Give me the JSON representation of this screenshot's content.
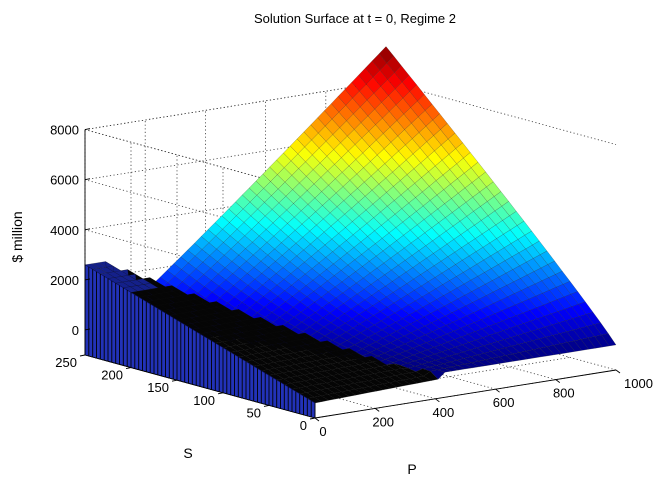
{
  "chart_data": {
    "type": "surface",
    "title": "Solution Surface at t = 0, Regime 2",
    "xlabel": "P",
    "ylabel": "S",
    "zlabel": "$ million",
    "xlim": [
      0,
      1000
    ],
    "ylim": [
      0,
      250
    ],
    "zlim": [
      -1000,
      8000
    ],
    "x_ticks": [
      "0",
      "200",
      "400",
      "600",
      "800",
      "1000"
    ],
    "y_ticks": [
      "0",
      "50",
      "100",
      "150",
      "200",
      "250"
    ],
    "z_ticks": [
      "0",
      "2000",
      "4000",
      "6000",
      "8000"
    ],
    "x_tick_values": [
      0,
      200,
      400,
      600,
      800,
      1000
    ],
    "y_tick_values": [
      0,
      50,
      100,
      150,
      200,
      250
    ],
    "z_tick_values": [
      0,
      2000,
      4000,
      6000,
      8000
    ],
    "grid": true,
    "colormap": "jet",
    "surface_corners": [
      {
        "P": 0,
        "S": 250,
        "value": 2600
      },
      {
        "P": 1000,
        "S": 250,
        "value": 9400
      },
      {
        "P": 1000,
        "S": 0,
        "value": 0
      },
      {
        "P": 0,
        "S": 0,
        "value": -400
      }
    ],
    "zero_region_boundary": [
      {
        "P": 75,
        "S": 250
      },
      {
        "P": 165,
        "S": 230
      },
      {
        "P": 260,
        "S": 150
      },
      {
        "P": 330,
        "S": 90
      },
      {
        "P": 420,
        "S": 0
      }
    ]
  }
}
